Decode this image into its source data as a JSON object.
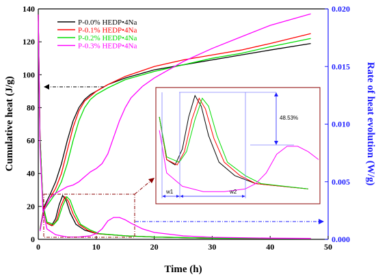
{
  "chart_data": {
    "type": "line",
    "title": "",
    "xlabel": "Time (h)",
    "ylabel_left": "Cumulative heat (J/g)",
    "ylabel_right": "Rate of heat evolution (W/g)",
    "xlim": [
      0,
      50
    ],
    "ylim_left": [
      0,
      140
    ],
    "ylim_right": [
      0,
      0.02
    ],
    "x_ticks": [
      "0",
      "10",
      "20",
      "30",
      "40",
      "50"
    ],
    "y_left_ticks": [
      "0",
      "20",
      "40",
      "60",
      "80",
      "100",
      "120",
      "140"
    ],
    "y_right_ticks": [
      "0.000",
      "0.005",
      "0.010",
      "0.015",
      "0.020"
    ],
    "grid": false,
    "legend_position": "top-left",
    "series": [
      {
        "name": "P-0.0% HEDP•4Na",
        "color": "#000000",
        "cumulative_heat": [
          [
            0.3,
            6
          ],
          [
            1,
            20
          ],
          [
            2,
            27
          ],
          [
            3,
            35
          ],
          [
            4,
            46
          ],
          [
            5,
            60
          ],
          [
            6,
            72
          ],
          [
            7,
            80
          ],
          [
            8,
            85
          ],
          [
            9,
            88
          ],
          [
            10,
            90
          ],
          [
            12,
            94
          ],
          [
            15,
            98
          ],
          [
            20,
            103
          ],
          [
            25,
            106
          ],
          [
            30,
            109
          ],
          [
            35,
            112
          ],
          [
            40,
            115
          ],
          [
            47,
            119
          ]
        ],
        "heat_rate": [
          [
            0,
            0.0195
          ],
          [
            0.3,
            0.009
          ],
          [
            0.8,
            0.003
          ],
          [
            1.5,
            0.0014
          ],
          [
            2.3,
            0.0012
          ],
          [
            3,
            0.0018
          ],
          [
            3.6,
            0.003
          ],
          [
            4.2,
            0.0038
          ],
          [
            4.8,
            0.0034
          ],
          [
            5.5,
            0.0023
          ],
          [
            6.5,
            0.0013
          ],
          [
            8,
            0.0008
          ],
          [
            10,
            0.0005
          ],
          [
            15,
            0.0003
          ],
          [
            20,
            0.0002
          ],
          [
            30,
            0.0001
          ],
          [
            40,
            8e-05
          ],
          [
            47,
            6e-05
          ]
        ]
      },
      {
        "name": "P-0.1% HEDP•4Na",
        "color": "#ff0000",
        "cumulative_heat": [
          [
            0.3,
            6
          ],
          [
            1,
            19
          ],
          [
            2,
            25
          ],
          [
            3,
            31
          ],
          [
            4,
            40
          ],
          [
            5,
            54
          ],
          [
            6,
            68
          ],
          [
            7,
            78
          ],
          [
            8,
            84
          ],
          [
            9,
            87
          ],
          [
            10,
            90
          ],
          [
            12,
            94
          ],
          [
            15,
            99
          ],
          [
            20,
            105
          ],
          [
            25,
            109
          ],
          [
            30,
            112
          ],
          [
            35,
            115
          ],
          [
            40,
            119
          ],
          [
            47,
            125
          ]
        ],
        "heat_rate": [
          [
            0,
            0.0195
          ],
          [
            0.3,
            0.009
          ],
          [
            0.8,
            0.003
          ],
          [
            1.5,
            0.0014
          ],
          [
            2.5,
            0.0012
          ],
          [
            3.2,
            0.0017
          ],
          [
            3.9,
            0.0029
          ],
          [
            4.6,
            0.0037
          ],
          [
            5.2,
            0.0033
          ],
          [
            6,
            0.0022
          ],
          [
            7,
            0.0013
          ],
          [
            8.5,
            0.0008
          ],
          [
            10,
            0.0005
          ],
          [
            15,
            0.0003
          ],
          [
            20,
            0.0002
          ],
          [
            30,
            0.0001
          ],
          [
            40,
            8e-05
          ],
          [
            47,
            6e-05
          ]
        ]
      },
      {
        "name": "P-0.2% HEDP•4Na",
        "color": "#00dd00",
        "cumulative_heat": [
          [
            0.3,
            6
          ],
          [
            1,
            18
          ],
          [
            2,
            23
          ],
          [
            3,
            28
          ],
          [
            4,
            35
          ],
          [
            5,
            46
          ],
          [
            6,
            60
          ],
          [
            7,
            72
          ],
          [
            8,
            80
          ],
          [
            9,
            85
          ],
          [
            10,
            88
          ],
          [
            12,
            92
          ],
          [
            15,
            97
          ],
          [
            20,
            102
          ],
          [
            25,
            106
          ],
          [
            30,
            110
          ],
          [
            35,
            113
          ],
          [
            40,
            117
          ],
          [
            47,
            122
          ]
        ],
        "heat_rate": [
          [
            0,
            0.0195
          ],
          [
            0.3,
            0.009
          ],
          [
            0.8,
            0.003
          ],
          [
            1.5,
            0.0015
          ],
          [
            2.7,
            0.0013
          ],
          [
            3.4,
            0.0017
          ],
          [
            4.2,
            0.0029
          ],
          [
            4.9,
            0.0037
          ],
          [
            5.5,
            0.0034
          ],
          [
            6.3,
            0.0023
          ],
          [
            7.3,
            0.0013
          ],
          [
            9,
            0.0008
          ],
          [
            10.5,
            0.0005
          ],
          [
            15,
            0.0003
          ],
          [
            20,
            0.0002
          ],
          [
            30,
            0.0001
          ],
          [
            40,
            8e-05
          ],
          [
            47,
            6e-05
          ]
        ]
      },
      {
        "name": "P-0.3% HEDP•4Na",
        "color": "#ff00ff",
        "cumulative_heat": [
          [
            0.3,
            5
          ],
          [
            1,
            18
          ],
          [
            2,
            25
          ],
          [
            3,
            28
          ],
          [
            4,
            30
          ],
          [
            5,
            32
          ],
          [
            6,
            33
          ],
          [
            7,
            35
          ],
          [
            8,
            38
          ],
          [
            9,
            41
          ],
          [
            10,
            43
          ],
          [
            11,
            46
          ],
          [
            12,
            52
          ],
          [
            13,
            62
          ],
          [
            14,
            72
          ],
          [
            15,
            80
          ],
          [
            16,
            86
          ],
          [
            18,
            93
          ],
          [
            20,
            98
          ],
          [
            25,
            108
          ],
          [
            30,
            116
          ],
          [
            35,
            123
          ],
          [
            40,
            130
          ],
          [
            47,
            137
          ]
        ],
        "heat_rate": [
          [
            0,
            0.0195
          ],
          [
            0.3,
            0.008
          ],
          [
            0.8,
            0.0025
          ],
          [
            1.5,
            0.0009
          ],
          [
            3,
            0.0004
          ],
          [
            5,
            0.0002
          ],
          [
            7,
            0.0002
          ],
          [
            9,
            0.0003
          ],
          [
            10,
            0.0005
          ],
          [
            11,
            0.0009
          ],
          [
            12,
            0.0016
          ],
          [
            13,
            0.0019
          ],
          [
            14,
            0.0019
          ],
          [
            15,
            0.0017
          ],
          [
            16,
            0.0014
          ],
          [
            18,
            0.0009
          ],
          [
            20,
            0.0006
          ],
          [
            25,
            0.0003
          ],
          [
            30,
            0.00018
          ],
          [
            40,
            0.0001
          ],
          [
            47,
            8e-05
          ]
        ]
      }
    ],
    "inset": {
      "annotations": {
        "percent": "48.53%",
        "w1": "w1",
        "w2": "w2"
      }
    },
    "arrow_colors": {
      "left_axis_arrow": "#000000",
      "right_axis_arrow": "#1f1fff",
      "zoom_box": "#8b0000"
    }
  }
}
